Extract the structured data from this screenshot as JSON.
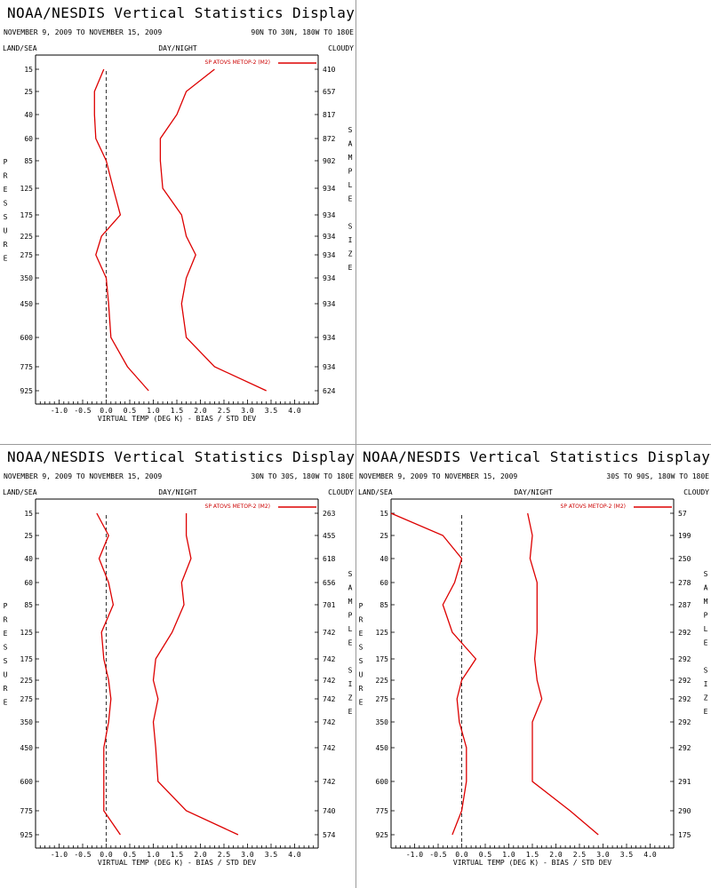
{
  "colors": {
    "series": "#dd0000",
    "axis": "#000000",
    "zero_line": "#333333"
  },
  "chart_data": [
    {
      "type": "line",
      "title": "NOAA/NESDIS Vertical Statistics Display",
      "date_range": "NOVEMBER 9, 2009 TO NOVEMBER 15, 2009",
      "region": "90N TO 30N, 180W TO 180E",
      "label_left": "LAND/SEA",
      "label_center": "DAY/NIGHT",
      "label_right": "CLOUDY",
      "ylabel": "PRESSURE",
      "right_axis_label": "SAMPLE SIZE",
      "xlabel": "VIRTUAL TEMP (DEG K) - BIAS / STD DEV",
      "legend": "SP ATOVS METOP-2 (M2)",
      "legend_position": "top-right",
      "xlim": [
        -1.5,
        4.5
      ],
      "xticks": [
        "-1.0",
        "-0.5",
        "0.0",
        "0.5",
        "1.0",
        "1.5",
        "2.0",
        "2.5",
        "3.0",
        "3.5",
        "4.0"
      ],
      "pressure_levels": [
        "15",
        "25",
        "40",
        "60",
        "85",
        "125",
        "175",
        "225",
        "275",
        "350",
        "450",
        "600",
        "775",
        "925"
      ],
      "sample_size": [
        "410",
        "657",
        "817",
        "872",
        "902",
        "934",
        "934",
        "934",
        "934",
        "934",
        "934",
        "934",
        "934",
        "624"
      ],
      "series": [
        {
          "values": [
            -0.05,
            -0.25,
            -0.25,
            -0.22,
            0.0,
            0.15,
            0.3,
            -0.1,
            -0.22,
            0.0,
            0.05,
            0.1,
            0.45,
            0.9
          ]
        },
        {
          "values": [
            2.3,
            1.7,
            1.5,
            1.15,
            1.15,
            1.2,
            1.6,
            1.7,
            1.9,
            1.7,
            1.6,
            1.7,
            2.3,
            3.4
          ]
        }
      ]
    },
    {
      "type": "line",
      "title": "NOAA/NESDIS Vertical Statistics Display",
      "date_range": "NOVEMBER 9, 2009 TO NOVEMBER 15, 2009",
      "region": "30N TO 30S, 180W TO 180E",
      "label_left": "LAND/SEA",
      "label_center": "DAY/NIGHT",
      "label_right": "CLOUDY",
      "ylabel": "PRESSURE",
      "right_axis_label": "SAMPLE SIZE",
      "xlabel": "VIRTUAL TEMP (DEG K) - BIAS / STD DEV",
      "legend": "SP ATOVS METOP-2 (M2)",
      "legend_position": "top-right",
      "xlim": [
        -1.5,
        4.5
      ],
      "xticks": [
        "-1.0",
        "-0.5",
        "0.0",
        "0.5",
        "1.0",
        "1.5",
        "2.0",
        "2.5",
        "3.0",
        "3.5",
        "4.0"
      ],
      "pressure_levels": [
        "15",
        "25",
        "40",
        "60",
        "85",
        "125",
        "175",
        "225",
        "275",
        "350",
        "450",
        "600",
        "775",
        "925"
      ],
      "sample_size": [
        "263",
        "455",
        "618",
        "656",
        "701",
        "742",
        "742",
        "742",
        "742",
        "742",
        "742",
        "742",
        "740",
        "574"
      ],
      "series": [
        {
          "values": [
            -0.2,
            0.05,
            -0.15,
            0.05,
            0.15,
            -0.1,
            -0.05,
            0.05,
            0.1,
            0.05,
            -0.05,
            -0.05,
            -0.05,
            0.3
          ]
        },
        {
          "values": [
            1.7,
            1.7,
            1.8,
            1.6,
            1.65,
            1.4,
            1.05,
            1.0,
            1.1,
            1.0,
            1.05,
            1.1,
            1.7,
            2.8
          ]
        }
      ]
    },
    {
      "type": "line",
      "title": "NOAA/NESDIS Vertical Statistics Display",
      "date_range": "NOVEMBER 9, 2009 TO NOVEMBER 15, 2009",
      "region": "30S TO 90S, 180W TO 180E",
      "label_left": "LAND/SEA",
      "label_center": "DAY/NIGHT",
      "label_right": "CLOUDY",
      "ylabel": "PRESSURE",
      "right_axis_label": "SAMPLE SIZE",
      "xlabel": "VIRTUAL TEMP (DEG K) - BIAS / STD DEV",
      "legend": "SP ATOVS METOP-2 (M2)",
      "legend_position": "top-right",
      "xlim": [
        -1.5,
        4.5
      ],
      "xticks": [
        "-1.0",
        "-0.5",
        "0.0",
        "0.5",
        "1.0",
        "1.5",
        "2.0",
        "2.5",
        "3.0",
        "3.5",
        "4.0"
      ],
      "pressure_levels": [
        "15",
        "25",
        "40",
        "60",
        "85",
        "125",
        "175",
        "225",
        "275",
        "350",
        "450",
        "600",
        "775",
        "925"
      ],
      "sample_size": [
        "57",
        "199",
        "250",
        "278",
        "287",
        "292",
        "292",
        "292",
        "292",
        "292",
        "292",
        "291",
        "290",
        "175"
      ],
      "series": [
        {
          "values": [
            -1.5,
            -0.4,
            0.0,
            -0.15,
            -0.4,
            -0.2,
            0.3,
            0.0,
            -0.1,
            -0.05,
            0.1,
            0.1,
            0.0,
            -0.2
          ]
        },
        {
          "values": [
            1.4,
            1.5,
            1.45,
            1.6,
            1.6,
            1.6,
            1.55,
            1.6,
            1.7,
            1.5,
            1.5,
            1.5,
            2.3,
            2.9
          ]
        }
      ]
    }
  ]
}
